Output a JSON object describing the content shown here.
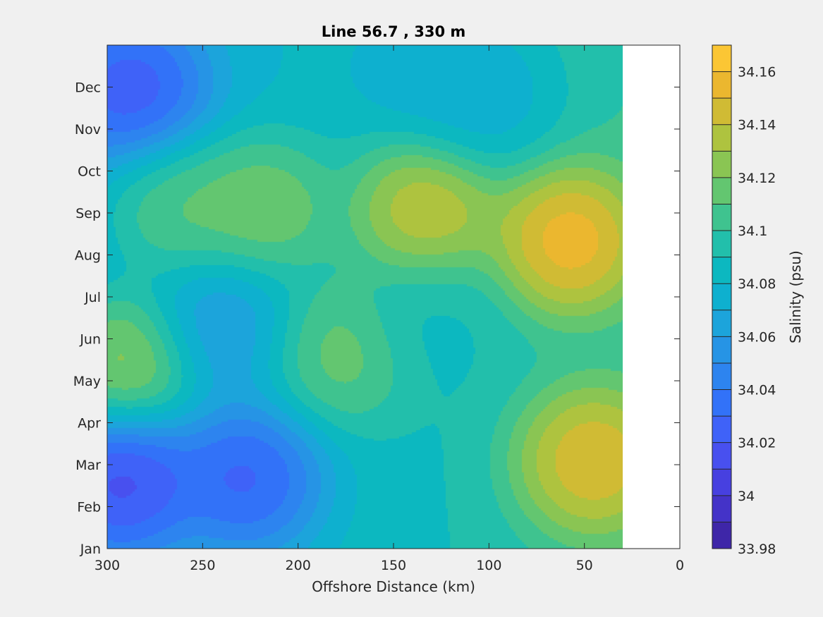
{
  "chart_data": {
    "type": "heatmap",
    "subtype": "filled-contour",
    "title": "Line 56.7 , 330 m",
    "xlabel": "Offshore Distance (km)",
    "ylabel": "",
    "x_axis_reversed": true,
    "xlim": [
      0,
      300
    ],
    "xticks": [
      300,
      250,
      200,
      150,
      100,
      50,
      0
    ],
    "yticks": [
      "Jan",
      "Feb",
      "Mar",
      "Apr",
      "May",
      "Jun",
      "Jul",
      "Aug",
      "Sep",
      "Oct",
      "Nov",
      "Dec"
    ],
    "data_x_range": [
      30,
      300
    ],
    "colorbar": {
      "label": "Salinity (psu)",
      "range": [
        33.98,
        34.17
      ],
      "ticks": [
        "34.16",
        "34.14",
        "34.12",
        "34.1",
        "34.08",
        "34.06",
        "34.04",
        "34.02",
        "34",
        "33.98"
      ],
      "levels": [
        33.98,
        33.99,
        34.0,
        34.01,
        34.02,
        34.03,
        34.04,
        34.05,
        34.06,
        34.07,
        34.08,
        34.09,
        34.1,
        34.11,
        34.12,
        34.13,
        34.14,
        34.15,
        34.16,
        34.17
      ],
      "colors": [
        "#3e26a8",
        "#4433c8",
        "#4740e0",
        "#4850ef",
        "#3f62f8",
        "#3272f8",
        "#2d84ef",
        "#2694e5",
        "#1ca4db",
        "#0eb0cf",
        "#0cb8c0",
        "#22bfab",
        "#3fc38f",
        "#63c670",
        "#8ac553",
        "#aec33f",
        "#d0bb34",
        "#ebb72f",
        "#fbc634",
        "#f2e51c"
      ]
    },
    "grid": false,
    "hotspots": [
      {
        "x": 290,
        "y": 4.45,
        "value": 34.155,
        "label": "Jun coastal high"
      },
      {
        "x": 60,
        "y": 7.35,
        "value": 34.163,
        "label": "Aug onshore max"
      },
      {
        "x": 135,
        "y": 8.0,
        "value": 34.15,
        "label": "Sep peak"
      },
      {
        "x": 48,
        "y": 2.1,
        "value": 34.15,
        "label": "Mar onshore"
      },
      {
        "x": 220,
        "y": 8.1,
        "value": 34.13,
        "label": "Sep mid"
      },
      {
        "x": 265,
        "y": 8.1,
        "value": 34.125,
        "label": "Sep offshore"
      },
      {
        "x": 180,
        "y": 4.7,
        "value": 34.12,
        "label": "May/Jun mid"
      },
      {
        "x": 290,
        "y": 1.65,
        "value": 33.985,
        "label": "Mar offshore low"
      },
      {
        "x": 225,
        "y": 1.7,
        "value": 33.992,
        "label": "Mar low"
      },
      {
        "x": 285,
        "y": 10.9,
        "value": 33.995,
        "label": "Dec offshore low"
      },
      {
        "x": 130,
        "y": 5.5,
        "value": 34.065,
        "label": "Jun/Jul low"
      },
      {
        "x": 240,
        "y": 5.3,
        "value": 34.04,
        "label": "Jun low"
      },
      {
        "x": 100,
        "y": 10.8,
        "value": 34.04,
        "label": "Dec low"
      },
      {
        "x": 130,
        "y": 11.4,
        "value": 34.05,
        "label": "Dec top"
      }
    ]
  }
}
